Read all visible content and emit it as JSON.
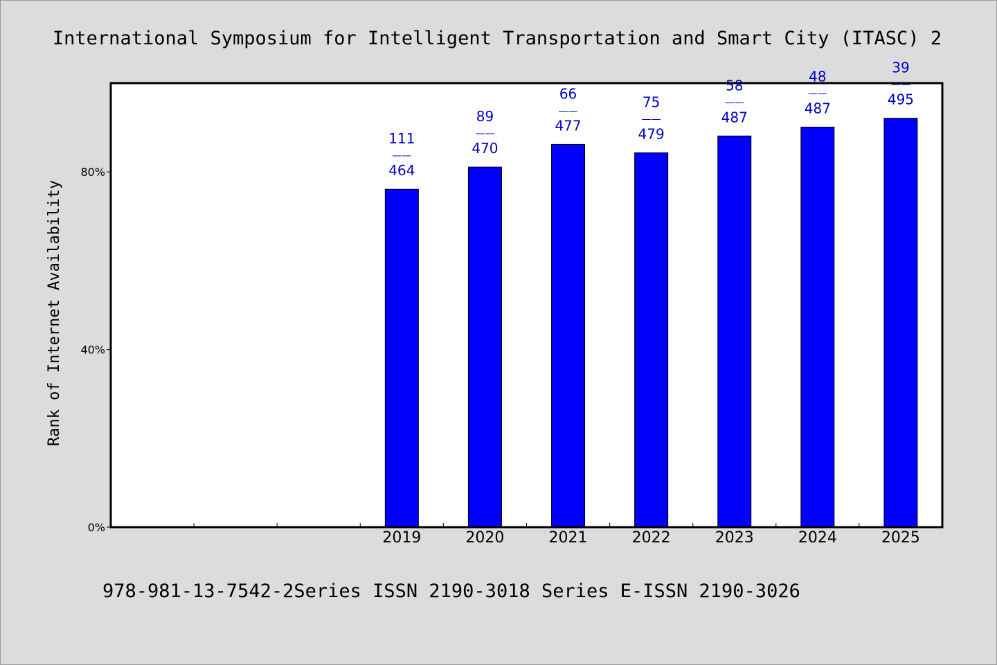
{
  "chart_data": {
    "type": "bar",
    "title": "International Symposium for Intelligent Transportation and Smart City (ITASC) 2",
    "ylabel": "Rank of Internet Availability",
    "footer": "978-981-13-7542-2Series ISSN 2190-3018 Series E-ISSN 2190-3026",
    "categories": [
      "2019",
      "2020",
      "2021",
      "2022",
      "2023",
      "2024",
      "2025"
    ],
    "values": [
      76.1,
      81.1,
      86.2,
      84.3,
      88.1,
      90.1,
      92.1
    ],
    "ranks": [
      "111",
      "89",
      "66",
      "75",
      "58",
      "48",
      "39"
    ],
    "separator": "——",
    "totals": [
      "464",
      "470",
      "477",
      "479",
      "487",
      "487",
      "495"
    ],
    "ylim": [
      0,
      100
    ],
    "y_ticks": [
      {
        "value": 0,
        "label": "0%"
      },
      {
        "value": 40,
        "label": "40%"
      },
      {
        "value": 80,
        "label": "80%"
      }
    ],
    "x_slots": 10,
    "first_bar_slot": 3,
    "grid": false,
    "colors": {
      "bar": "#0000ff",
      "bar_stroke": "#000000",
      "label": "#0000cc",
      "background": "#dcdcdc",
      "plot_background": "#ffffff"
    }
  }
}
